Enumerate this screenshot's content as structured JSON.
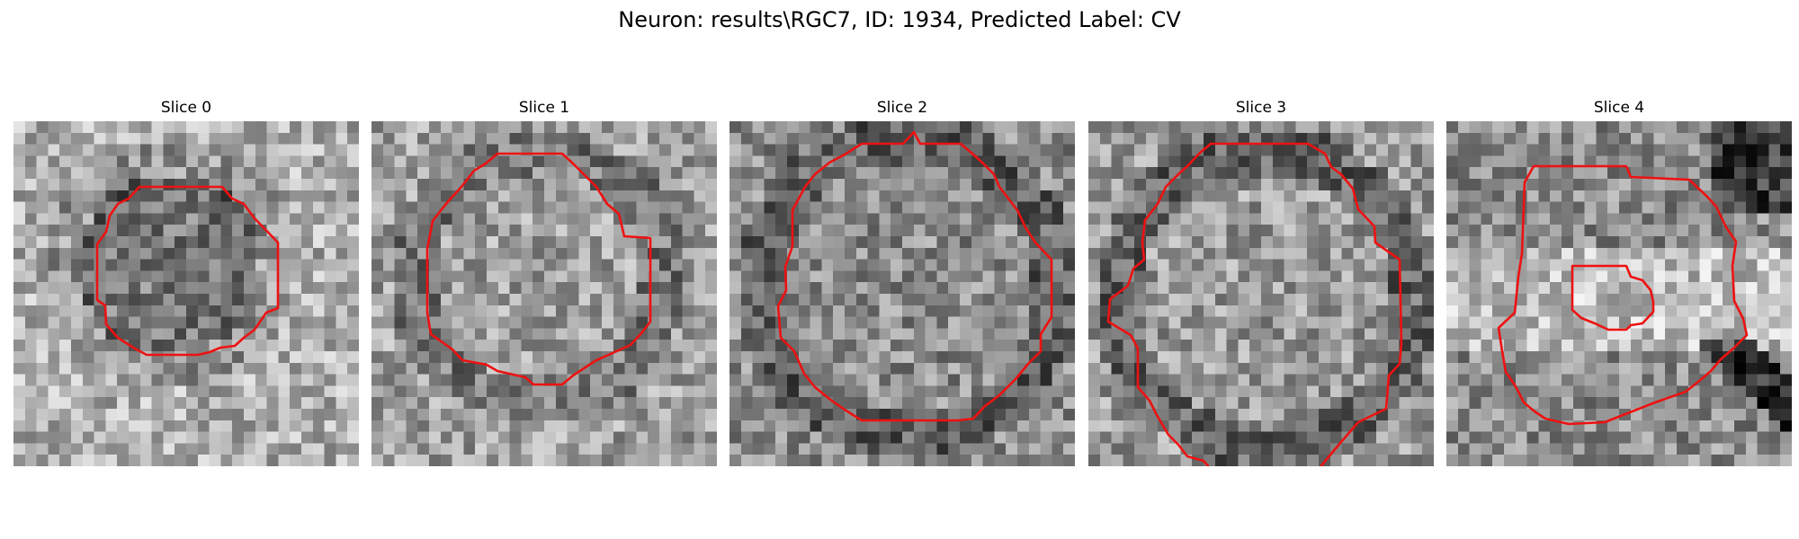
{
  "figure": {
    "title": "Neuron: results\\RGC7, ID: 1934, Predicted Label: CV",
    "contour_color": "#ee1111"
  },
  "panels": [
    {
      "title": "Slice 0"
    },
    {
      "title": "Slice 1"
    },
    {
      "title": "Slice 2"
    },
    {
      "title": "Slice 3"
    },
    {
      "title": "Slice 4"
    }
  ]
}
